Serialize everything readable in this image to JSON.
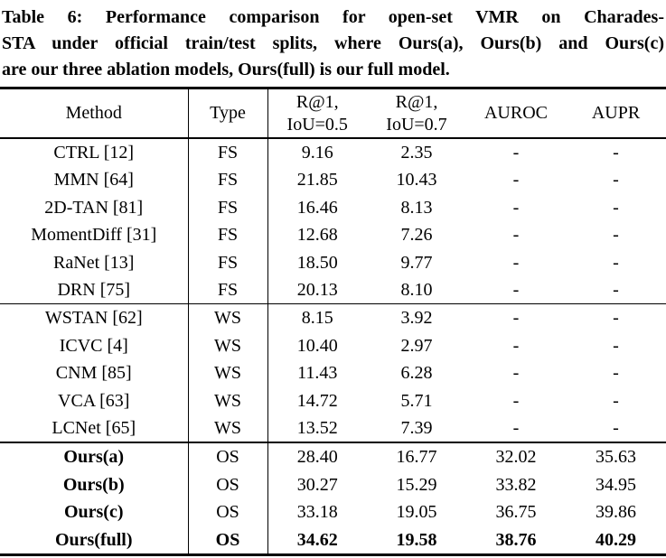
{
  "colors": {
    "text": "#000000",
    "background": "#ffffff",
    "rule": "#000000"
  },
  "caption": {
    "lines": [
      "Table 6: Performance comparison for open-set VMR on Charades-",
      "STA under official train/test splits, where Ours(a), Ours(b) and Ours(c)",
      "are our three ablation models, Ours(full) is our full model."
    ]
  },
  "table": {
    "headers": [
      "Method",
      "Type",
      "R@1,\nIoU=0.5",
      "R@1,\nIoU=0.7",
      "AUROC",
      "AUPR"
    ],
    "groups": [
      {
        "name": "fully-supervised",
        "separator_above": "none",
        "rows": [
          {
            "cells": [
              "CTRL [12]",
              "FS",
              "9.16",
              "2.35",
              "-",
              "-"
            ],
            "emphasis": "none"
          },
          {
            "cells": [
              "MMN [64]",
              "FS",
              "21.85",
              "10.43",
              "-",
              "-"
            ],
            "emphasis": "none"
          },
          {
            "cells": [
              "2D-TAN [81]",
              "FS",
              "16.46",
              "8.13",
              "-",
              "-"
            ],
            "emphasis": "none"
          },
          {
            "cells": [
              "MomentDiff [31]",
              "FS",
              "12.68",
              "7.26",
              "-",
              "-"
            ],
            "emphasis": "none"
          },
          {
            "cells": [
              "RaNet [13]",
              "FS",
              "18.50",
              "9.77",
              "-",
              "-"
            ],
            "emphasis": "none"
          },
          {
            "cells": [
              "DRN [75]",
              "FS",
              "20.13",
              "8.10",
              "-",
              "-"
            ],
            "emphasis": "none"
          }
        ]
      },
      {
        "name": "weakly-supervised",
        "separator_above": "thin",
        "rows": [
          {
            "cells": [
              "WSTAN [62]",
              "WS",
              "8.15",
              "3.92",
              "-",
              "-"
            ],
            "emphasis": "none"
          },
          {
            "cells": [
              "ICVC [4]",
              "WS",
              "10.40",
              "2.97",
              "-",
              "-"
            ],
            "emphasis": "none"
          },
          {
            "cells": [
              "CNM [85]",
              "WS",
              "11.43",
              "6.28",
              "-",
              "-"
            ],
            "emphasis": "none"
          },
          {
            "cells": [
              "VCA [63]",
              "WS",
              "14.72",
              "5.71",
              "-",
              "-"
            ],
            "emphasis": "none"
          },
          {
            "cells": [
              "LCNet [65]",
              "WS",
              "13.52",
              "7.39",
              "-",
              "-"
            ],
            "emphasis": "none"
          }
        ]
      },
      {
        "name": "open-set-ours",
        "separator_above": "thick",
        "rows": [
          {
            "cells": [
              "Ours(a)",
              "OS",
              "28.40",
              "16.77",
              "32.02",
              "35.63"
            ],
            "emphasis": "method"
          },
          {
            "cells": [
              "Ours(b)",
              "OS",
              "30.27",
              "15.29",
              "33.82",
              "34.95"
            ],
            "emphasis": "method"
          },
          {
            "cells": [
              "Ours(c)",
              "OS",
              "33.18",
              "19.05",
              "36.75",
              "39.86"
            ],
            "emphasis": "method"
          },
          {
            "cells": [
              "Ours(full)",
              "OS",
              "34.62",
              "19.58",
              "38.76",
              "40.29"
            ],
            "emphasis": "row"
          }
        ]
      }
    ]
  }
}
